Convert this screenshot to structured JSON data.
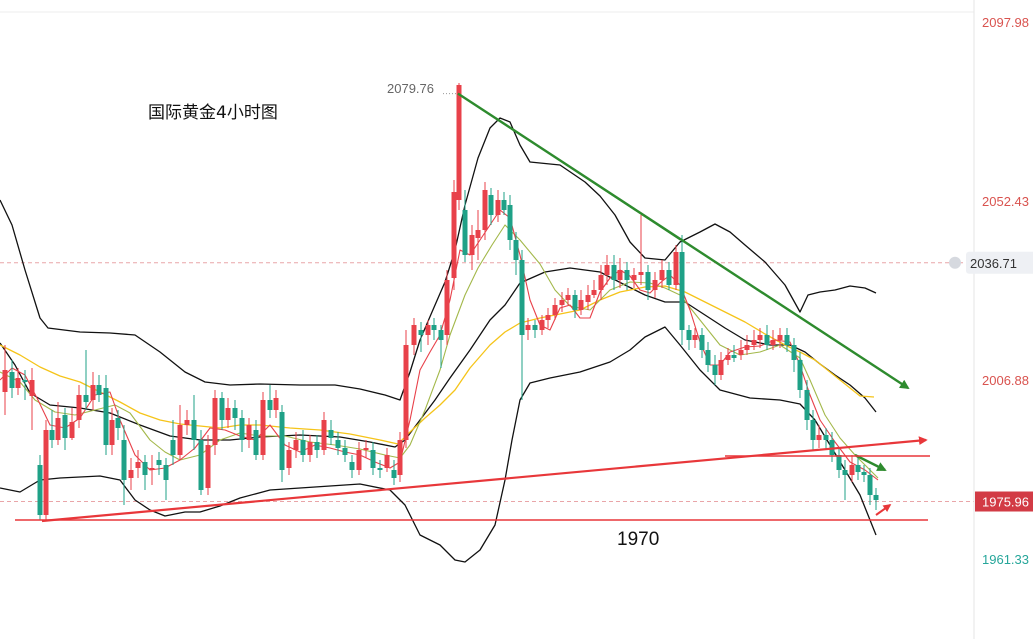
{
  "chart_data": {
    "type": "candlestick",
    "title": "国际黄金4小时图",
    "ylim": [
      1953,
      2101
    ],
    "y_axis": {
      "side": "right",
      "ticks": [
        {
          "value": 2097.98,
          "label": "2097.98",
          "color": "#d9534f"
        },
        {
          "value": 2052.43,
          "label": "2052.43",
          "color": "#d9534f"
        },
        {
          "value": 2006.88,
          "label": "2006.88",
          "color": "#d9534f"
        },
        {
          "value": 1961.33,
          "label": "1961.33",
          "color": "#26a69a"
        }
      ]
    },
    "price_markers": [
      {
        "value": 2036.71,
        "label": "2036.71",
        "style": "grey"
      },
      {
        "value": 1975.96,
        "label": "1975.96",
        "style": "red"
      }
    ],
    "high_annotation": {
      "value": 2079.76,
      "label": "2079.76"
    },
    "level_annotation": {
      "value": 1970,
      "label": "1970"
    },
    "colors": {
      "up": "#e8414a",
      "down": "#1fa187",
      "ma_short": "#e8414a",
      "ma_mid": "#a3b84a",
      "ma_long": "#f5c419",
      "bands": "#111111",
      "down_trend": "#2e8b2e",
      "up_trend": "#e8373a"
    }
  }
}
